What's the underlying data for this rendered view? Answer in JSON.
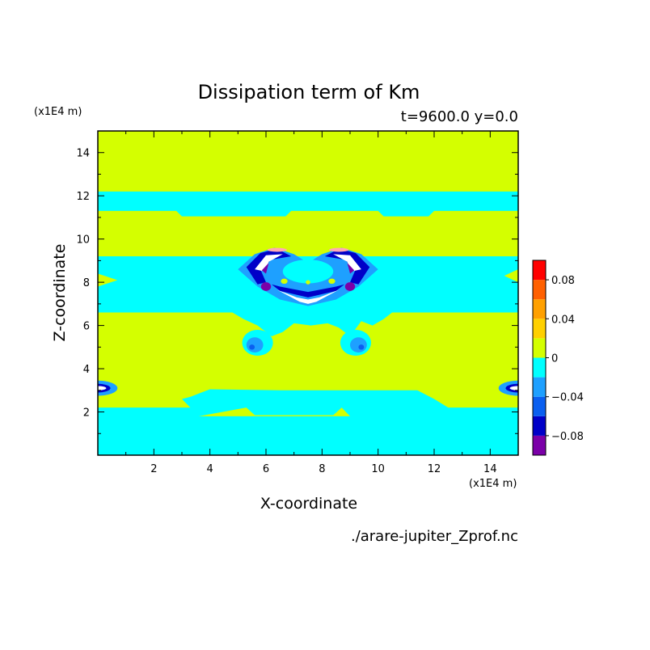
{
  "chart_data": {
    "type": "heatmap",
    "title": "Dissipation term of Km",
    "subtitle": "t=9600.0 y=0.0",
    "xlabel": "X-coordinate",
    "ylabel": "Z-coordinate",
    "x_unit": "(x1E4 m)",
    "y_unit": "(x1E4 m)",
    "source_file": "./arare-jupiter_Zprof.nc",
    "xlim": [
      0,
      15
    ],
    "ylim": [
      0,
      15
    ],
    "x_ticks": [
      "2",
      "4",
      "6",
      "8",
      "10",
      "12",
      "14"
    ],
    "y_ticks": [
      "2",
      "4",
      "6",
      "8",
      "10",
      "12",
      "14"
    ],
    "colorbar_labels": [
      "0.08",
      "0.04",
      "0",
      "−0.04",
      "−0.08"
    ],
    "levels": [
      -0.1,
      -0.08,
      -0.06,
      -0.04,
      -0.02,
      0,
      0.02,
      0.04,
      0.06,
      0.08,
      0.1
    ],
    "level_colors": [
      "#7b00a8",
      "#0000c8",
      "#0a5ff0",
      "#1ea0ff",
      "#00ffff",
      "#d4ff00",
      "#ffd000",
      "#ffa000",
      "#ff6000",
      "#ff0000",
      "#ffaab4"
    ],
    "regions": [
      {
        "level": "0 to 0.02",
        "x": [
          0,
          15
        ],
        "z": [
          12.2,
          15
        ]
      },
      {
        "level": "-0.02 to 0",
        "x": [
          0,
          15
        ],
        "z": [
          11.3,
          12.2
        ]
      },
      {
        "level": "0 to 0.02",
        "x": [
          0,
          15
        ],
        "z": [
          9.2,
          11.3
        ]
      },
      {
        "level": "-0.02 to 0",
        "x": [
          0,
          15
        ],
        "z": [
          6.6,
          9.2
        ]
      },
      {
        "level": "0 to 0.02",
        "x": [
          0,
          15
        ],
        "z": [
          2.2,
          6.6
        ]
      },
      {
        "level": "-0.02 to 0",
        "x": [
          0,
          15
        ],
        "z": [
          0,
          2.2
        ]
      },
      {
        "level": "-0.1 to -0.04",
        "x": [
          5.2,
          10
        ],
        "z": [
          7,
          9.2
        ]
      }
    ]
  }
}
